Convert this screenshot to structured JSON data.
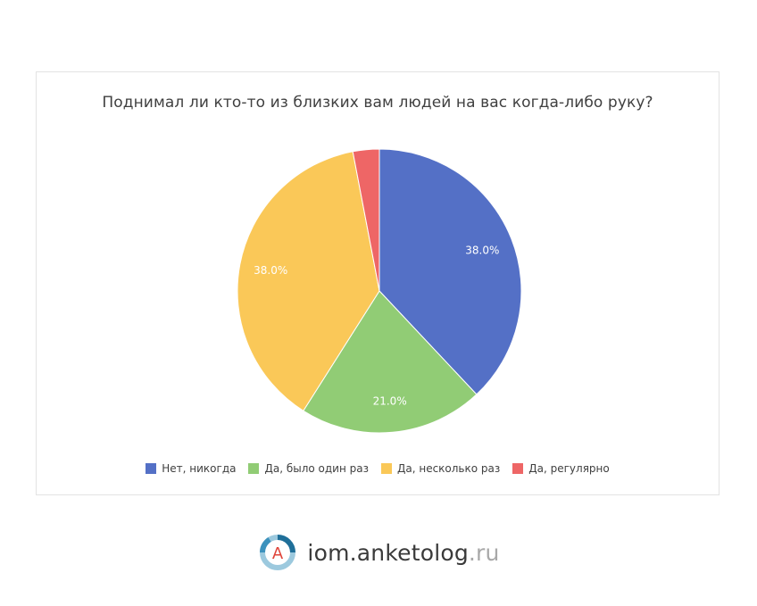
{
  "chart_data": {
    "type": "pie",
    "title": "Поднимал ли кто-то из близких вам людей на вас когда-либо руку?",
    "slices": [
      {
        "label": "Нет, никогда",
        "value": 38.0,
        "display": "38.0%",
        "color": "#5470c6"
      },
      {
        "label": "Да, было один раз",
        "value": 21.0,
        "display": "21.0%",
        "color": "#91cc75"
      },
      {
        "label": "Да, несколько раз",
        "value": 38.0,
        "display": "38.0%",
        "color": "#fac858"
      },
      {
        "label": "Да, регулярно",
        "value": 3.0,
        "display": "",
        "color": "#ee6666"
      }
    ],
    "legend_position": "bottom"
  },
  "branding": {
    "logo_letter": "A",
    "name": "iom.anketolog",
    "suffix": ".ru"
  }
}
